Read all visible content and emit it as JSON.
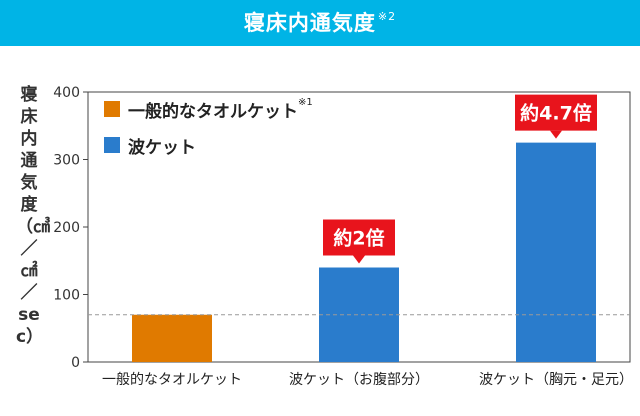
{
  "header": {
    "title": "寝床内通気度",
    "note": "※2"
  },
  "chart_data": {
    "type": "bar",
    "title": "寝床内通気度※2",
    "ylabel": "寝床内通気度（㎤／㎠／sec）",
    "xlabel": "",
    "ylim": [
      0,
      400
    ],
    "yticks": [
      0,
      100,
      200,
      300,
      400
    ],
    "categories": [
      "一般的なタオルケット",
      "波ケット（お腹部分）",
      "波ケット（胸元・足元）"
    ],
    "values": [
      70,
      140,
      325
    ],
    "bar_series": [
      "一般的なタオルケット",
      "波ケット",
      "波ケット"
    ],
    "reference_line": 70,
    "legend": [
      {
        "name": "一般的なタオルケット",
        "note": "※1",
        "color": "#e07a00"
      },
      {
        "name": "波ケット",
        "note": "",
        "color": "#2a7ccc"
      }
    ],
    "annotations": [
      "",
      "約2倍",
      "約4.7倍"
    ],
    "annotation_color": "#e8141c"
  }
}
